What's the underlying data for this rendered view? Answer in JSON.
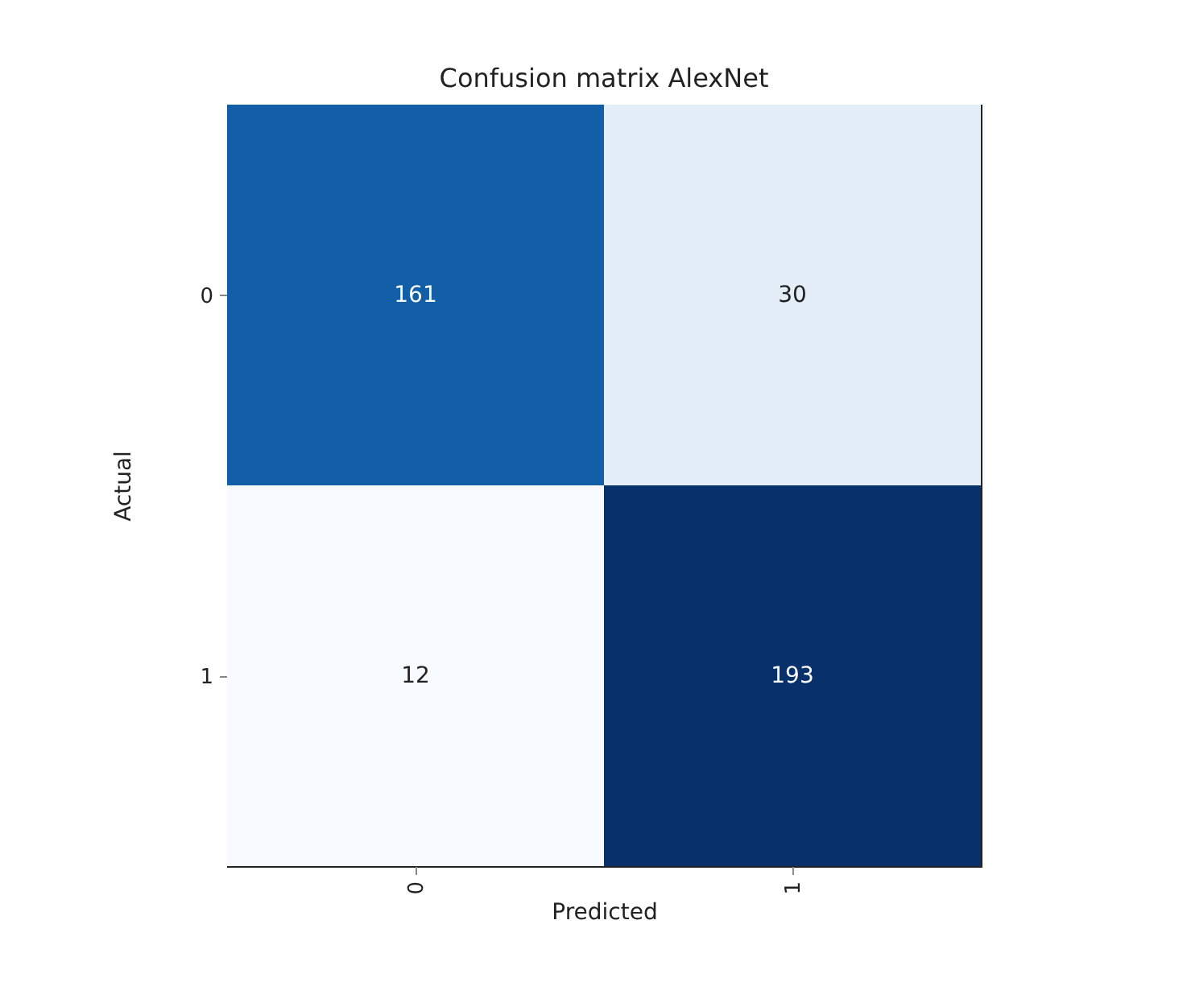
{
  "chart_data": {
    "type": "heatmap",
    "title": "Confusion matrix AlexNet",
    "xlabel": "Predicted",
    "ylabel": "Actual",
    "categories": [
      "0",
      "1"
    ],
    "y_categories": [
      "0",
      "1"
    ],
    "cells": [
      [
        161,
        30
      ],
      [
        12,
        193
      ]
    ],
    "data_labels": true
  }
}
